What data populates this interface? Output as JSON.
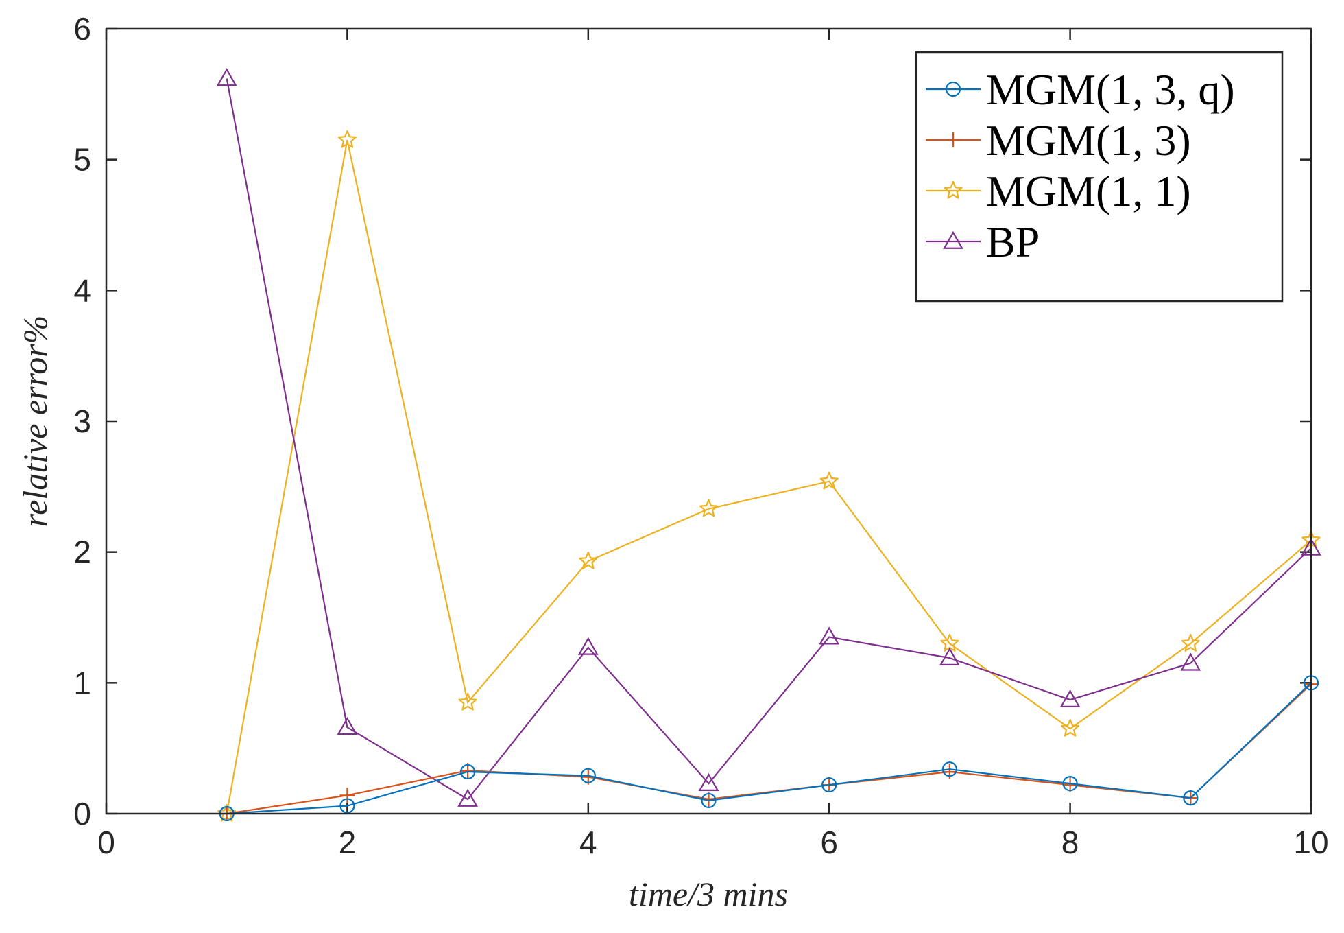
{
  "chart_data": {
    "type": "line",
    "title": "",
    "xlabel": "time/3 mins",
    "ylabel": "relative error%",
    "xlim": [
      0,
      10
    ],
    "ylim": [
      0,
      6
    ],
    "xticks": [
      "0",
      "2",
      "4",
      "6",
      "8",
      "10"
    ],
    "yticks": [
      "0",
      "1",
      "2",
      "3",
      "4",
      "5",
      "6"
    ],
    "grid": false,
    "legend_position": "top-right",
    "x": [
      1,
      2,
      3,
      4,
      5,
      6,
      7,
      8,
      9,
      10
    ],
    "series": [
      {
        "name": "MGM(1, 3, q)",
        "marker": "circle",
        "color": "#0072BD",
        "values": [
          0.0,
          0.06,
          0.32,
          0.29,
          0.1,
          0.22,
          0.34,
          0.23,
          0.12,
          1.0
        ]
      },
      {
        "name": "MGM(1, 3)",
        "marker": "plus",
        "color": "#D95319",
        "values": [
          0.0,
          0.14,
          0.33,
          0.28,
          0.11,
          0.22,
          0.32,
          0.22,
          0.12,
          0.99
        ]
      },
      {
        "name": "MGM(1, 1)",
        "marker": "star",
        "color": "#EDB120",
        "values": [
          0.0,
          5.15,
          0.85,
          1.93,
          2.33,
          2.54,
          1.3,
          0.65,
          1.3,
          2.09
        ]
      },
      {
        "name": "BP",
        "marker": "triangle",
        "color": "#7E2F8E",
        "values": [
          5.62,
          0.66,
          0.11,
          1.27,
          0.23,
          1.35,
          1.19,
          0.87,
          1.15,
          2.03
        ]
      }
    ]
  }
}
